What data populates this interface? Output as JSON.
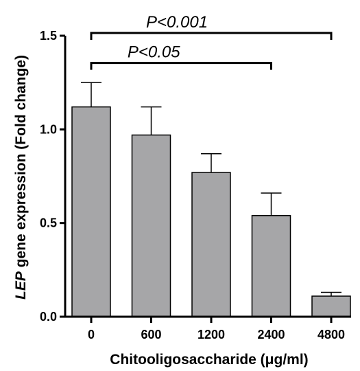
{
  "chart_data": {
    "type": "bar",
    "title": "",
    "xlabel": "Chitooligosaccharide (μg/ml)",
    "ylabel": {
      "gene": "LEP",
      "rest": " gene expression (Fold change)"
    },
    "categories": [
      "0",
      "600",
      "1200",
      "2400",
      "4800"
    ],
    "values": [
      1.12,
      0.97,
      0.77,
      0.54,
      0.11
    ],
    "errors": [
      0.13,
      0.15,
      0.1,
      0.12,
      0.02
    ],
    "ylim": [
      0,
      1.5
    ],
    "yticks": [
      "0.0",
      "0.5",
      "1.0",
      "1.5"
    ],
    "grid": false,
    "bar_color": "#a6a6a8",
    "significance": [
      {
        "label": "P<0.001",
        "from": "0",
        "to": "4800",
        "level": 1.5
      },
      {
        "label": "P<0.05",
        "from": "0",
        "to": "2400",
        "level": 1.34
      }
    ]
  }
}
